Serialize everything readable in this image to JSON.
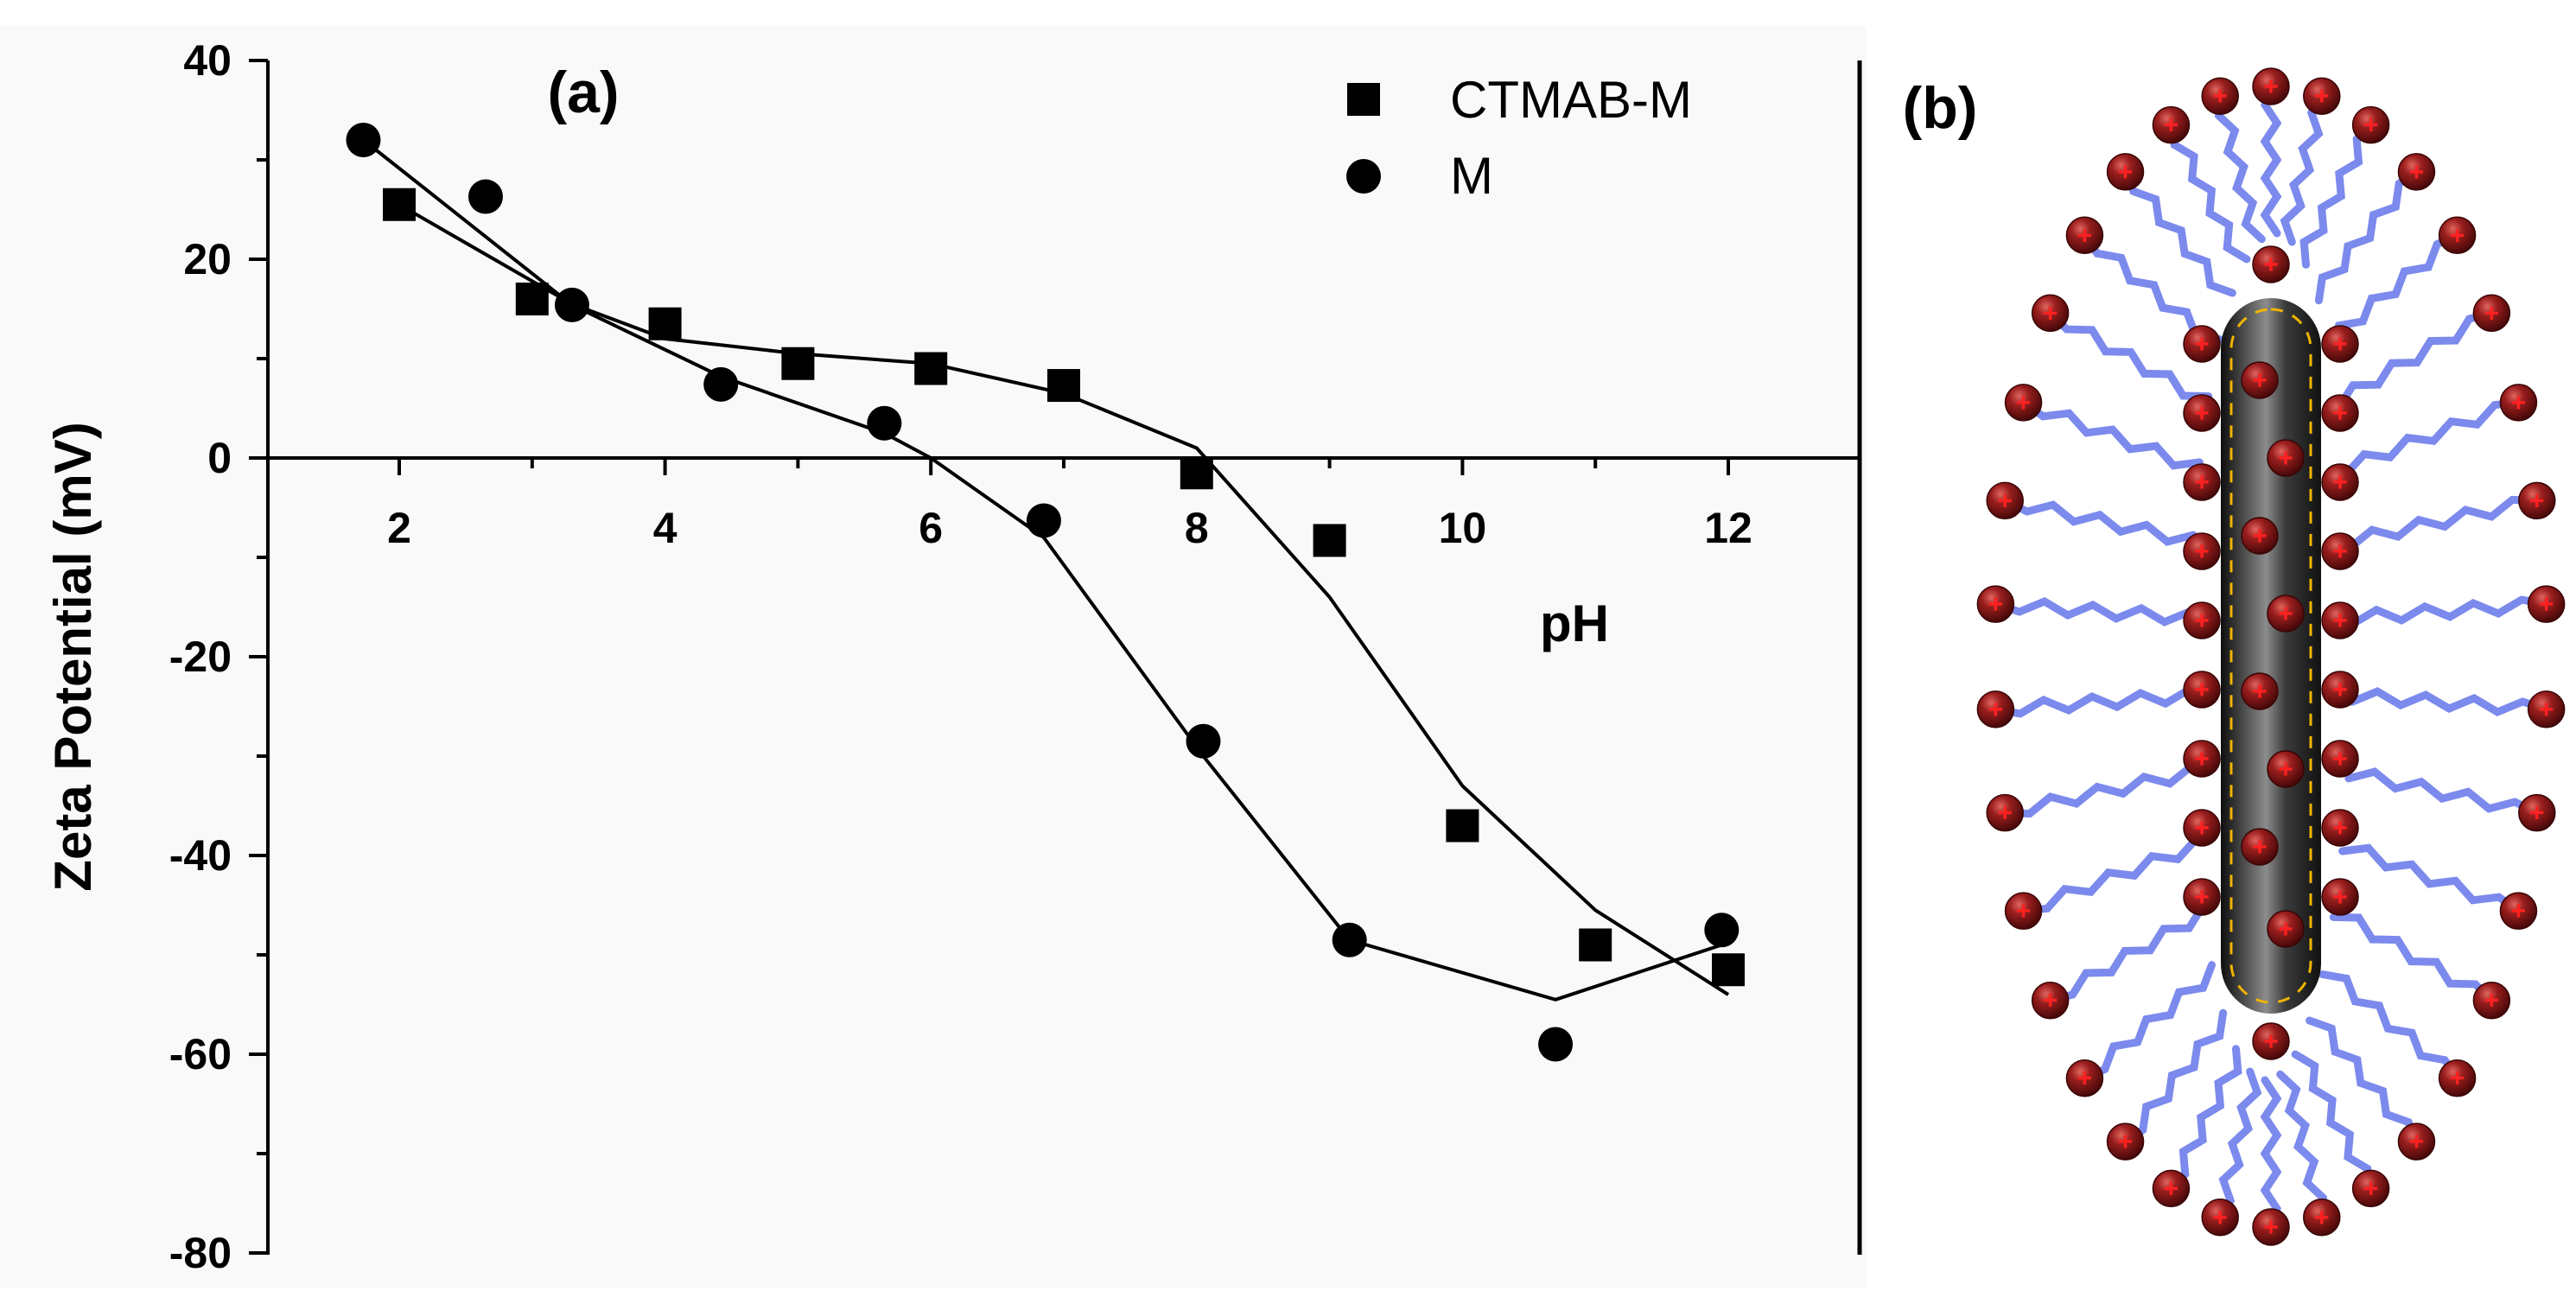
{
  "chart_data": {
    "type": "scatter",
    "panel_labels": [
      "(a)",
      "(b)"
    ],
    "xlabel": "pH",
    "ylabel": "Zeta Potential (mV)",
    "xlim": [
      1.0,
      13.0
    ],
    "ylim": [
      -80,
      40
    ],
    "x_ticks": [
      2,
      4,
      6,
      8,
      10,
      12
    ],
    "y_ticks": [
      40,
      20,
      0,
      -20,
      -40,
      -60,
      -80
    ],
    "x_tick_labels": [
      "2",
      "4",
      "6",
      "8",
      "10",
      "12"
    ],
    "y_tick_labels": [
      "40",
      "20",
      "0",
      "-20",
      "-40",
      "-60",
      "-80"
    ],
    "legend_position": "top-right",
    "series": [
      {
        "name": "CTMAB-M",
        "marker": "square",
        "points": {
          "x": [
            2,
            3,
            4,
            5,
            6,
            7,
            8,
            9,
            10,
            11,
            12
          ],
          "y": [
            25.5,
            16,
            13.5,
            9.5,
            9,
            7.3,
            -1.5,
            -8.3,
            -37,
            -49,
            -51.5
          ]
        },
        "fit": {
          "x": [
            2,
            3.3,
            4,
            5,
            6,
            7,
            8,
            9,
            10,
            11,
            12
          ],
          "y": [
            25.5,
            15.5,
            12,
            10.5,
            9.5,
            6.5,
            1,
            -14,
            -33,
            -45.5,
            -54
          ]
        }
      },
      {
        "name": "M",
        "marker": "circle",
        "points": {
          "x": [
            1.73,
            2.65,
            3.3,
            4.42,
            5.65,
            6.85,
            8.05,
            9.15,
            10.7,
            11.95
          ],
          "y": [
            32,
            26.3,
            15.4,
            7.4,
            3.5,
            -6.3,
            -28.5,
            -48.5,
            -59,
            -47.5
          ]
        },
        "fit": {
          "x": [
            1.73,
            3.3,
            4.42,
            5.65,
            6.0,
            6.85,
            8.05,
            9.15,
            10.7,
            11.95
          ],
          "y": [
            32,
            15.4,
            8.2,
            2.5,
            0,
            -8,
            -30,
            -48.5,
            -54.5,
            -49
          ]
        }
      }
    ],
    "schematic": {
      "charge_symbol": "+",
      "colors": {
        "surfactant_head": "#7d1414",
        "surfactant_head_highlight": "#e0665f",
        "charge_mark": "#ff2020",
        "surfactant_tail": "#4f63e6",
        "nanotube_dark": "#1e1e1e",
        "nanotube_light": "#8c8c8c",
        "nanotube_outline": "#f0b400"
      }
    }
  }
}
